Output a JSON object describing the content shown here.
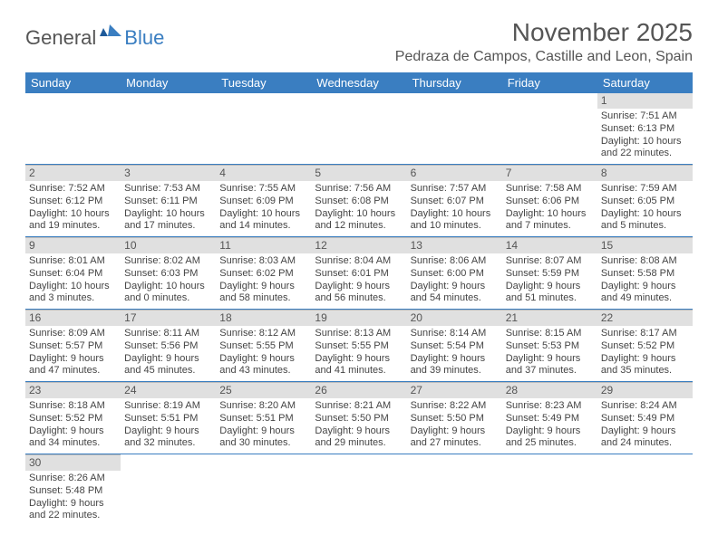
{
  "logo": {
    "textA": "General",
    "textB": "Blue"
  },
  "title": "November 2025",
  "location": "Pedraza de Campos, Castille and Leon, Spain",
  "colors": {
    "headerBg": "#3a7ec1",
    "headerText": "#ffffff",
    "dayStrip": "#e0e0e0",
    "border": "#3a7ec1"
  },
  "dayHeaders": [
    "Sunday",
    "Monday",
    "Tuesday",
    "Wednesday",
    "Thursday",
    "Friday",
    "Saturday"
  ],
  "weeks": [
    [
      null,
      null,
      null,
      null,
      null,
      null,
      {
        "n": "1",
        "sr": "Sunrise: 7:51 AM",
        "ss": "Sunset: 6:13 PM",
        "dl": "Daylight: 10 hours and 22 minutes."
      }
    ],
    [
      {
        "n": "2",
        "sr": "Sunrise: 7:52 AM",
        "ss": "Sunset: 6:12 PM",
        "dl": "Daylight: 10 hours and 19 minutes."
      },
      {
        "n": "3",
        "sr": "Sunrise: 7:53 AM",
        "ss": "Sunset: 6:11 PM",
        "dl": "Daylight: 10 hours and 17 minutes."
      },
      {
        "n": "4",
        "sr": "Sunrise: 7:55 AM",
        "ss": "Sunset: 6:09 PM",
        "dl": "Daylight: 10 hours and 14 minutes."
      },
      {
        "n": "5",
        "sr": "Sunrise: 7:56 AM",
        "ss": "Sunset: 6:08 PM",
        "dl": "Daylight: 10 hours and 12 minutes."
      },
      {
        "n": "6",
        "sr": "Sunrise: 7:57 AM",
        "ss": "Sunset: 6:07 PM",
        "dl": "Daylight: 10 hours and 10 minutes."
      },
      {
        "n": "7",
        "sr": "Sunrise: 7:58 AM",
        "ss": "Sunset: 6:06 PM",
        "dl": "Daylight: 10 hours and 7 minutes."
      },
      {
        "n": "8",
        "sr": "Sunrise: 7:59 AM",
        "ss": "Sunset: 6:05 PM",
        "dl": "Daylight: 10 hours and 5 minutes."
      }
    ],
    [
      {
        "n": "9",
        "sr": "Sunrise: 8:01 AM",
        "ss": "Sunset: 6:04 PM",
        "dl": "Daylight: 10 hours and 3 minutes."
      },
      {
        "n": "10",
        "sr": "Sunrise: 8:02 AM",
        "ss": "Sunset: 6:03 PM",
        "dl": "Daylight: 10 hours and 0 minutes."
      },
      {
        "n": "11",
        "sr": "Sunrise: 8:03 AM",
        "ss": "Sunset: 6:02 PM",
        "dl": "Daylight: 9 hours and 58 minutes."
      },
      {
        "n": "12",
        "sr": "Sunrise: 8:04 AM",
        "ss": "Sunset: 6:01 PM",
        "dl": "Daylight: 9 hours and 56 minutes."
      },
      {
        "n": "13",
        "sr": "Sunrise: 8:06 AM",
        "ss": "Sunset: 6:00 PM",
        "dl": "Daylight: 9 hours and 54 minutes."
      },
      {
        "n": "14",
        "sr": "Sunrise: 8:07 AM",
        "ss": "Sunset: 5:59 PM",
        "dl": "Daylight: 9 hours and 51 minutes."
      },
      {
        "n": "15",
        "sr": "Sunrise: 8:08 AM",
        "ss": "Sunset: 5:58 PM",
        "dl": "Daylight: 9 hours and 49 minutes."
      }
    ],
    [
      {
        "n": "16",
        "sr": "Sunrise: 8:09 AM",
        "ss": "Sunset: 5:57 PM",
        "dl": "Daylight: 9 hours and 47 minutes."
      },
      {
        "n": "17",
        "sr": "Sunrise: 8:11 AM",
        "ss": "Sunset: 5:56 PM",
        "dl": "Daylight: 9 hours and 45 minutes."
      },
      {
        "n": "18",
        "sr": "Sunrise: 8:12 AM",
        "ss": "Sunset: 5:55 PM",
        "dl": "Daylight: 9 hours and 43 minutes."
      },
      {
        "n": "19",
        "sr": "Sunrise: 8:13 AM",
        "ss": "Sunset: 5:55 PM",
        "dl": "Daylight: 9 hours and 41 minutes."
      },
      {
        "n": "20",
        "sr": "Sunrise: 8:14 AM",
        "ss": "Sunset: 5:54 PM",
        "dl": "Daylight: 9 hours and 39 minutes."
      },
      {
        "n": "21",
        "sr": "Sunrise: 8:15 AM",
        "ss": "Sunset: 5:53 PM",
        "dl": "Daylight: 9 hours and 37 minutes."
      },
      {
        "n": "22",
        "sr": "Sunrise: 8:17 AM",
        "ss": "Sunset: 5:52 PM",
        "dl": "Daylight: 9 hours and 35 minutes."
      }
    ],
    [
      {
        "n": "23",
        "sr": "Sunrise: 8:18 AM",
        "ss": "Sunset: 5:52 PM",
        "dl": "Daylight: 9 hours and 34 minutes."
      },
      {
        "n": "24",
        "sr": "Sunrise: 8:19 AM",
        "ss": "Sunset: 5:51 PM",
        "dl": "Daylight: 9 hours and 32 minutes."
      },
      {
        "n": "25",
        "sr": "Sunrise: 8:20 AM",
        "ss": "Sunset: 5:51 PM",
        "dl": "Daylight: 9 hours and 30 minutes."
      },
      {
        "n": "26",
        "sr": "Sunrise: 8:21 AM",
        "ss": "Sunset: 5:50 PM",
        "dl": "Daylight: 9 hours and 29 minutes."
      },
      {
        "n": "27",
        "sr": "Sunrise: 8:22 AM",
        "ss": "Sunset: 5:50 PM",
        "dl": "Daylight: 9 hours and 27 minutes."
      },
      {
        "n": "28",
        "sr": "Sunrise: 8:23 AM",
        "ss": "Sunset: 5:49 PM",
        "dl": "Daylight: 9 hours and 25 minutes."
      },
      {
        "n": "29",
        "sr": "Sunrise: 8:24 AM",
        "ss": "Sunset: 5:49 PM",
        "dl": "Daylight: 9 hours and 24 minutes."
      }
    ],
    [
      {
        "n": "30",
        "sr": "Sunrise: 8:26 AM",
        "ss": "Sunset: 5:48 PM",
        "dl": "Daylight: 9 hours and 22 minutes."
      },
      null,
      null,
      null,
      null,
      null,
      null
    ]
  ]
}
